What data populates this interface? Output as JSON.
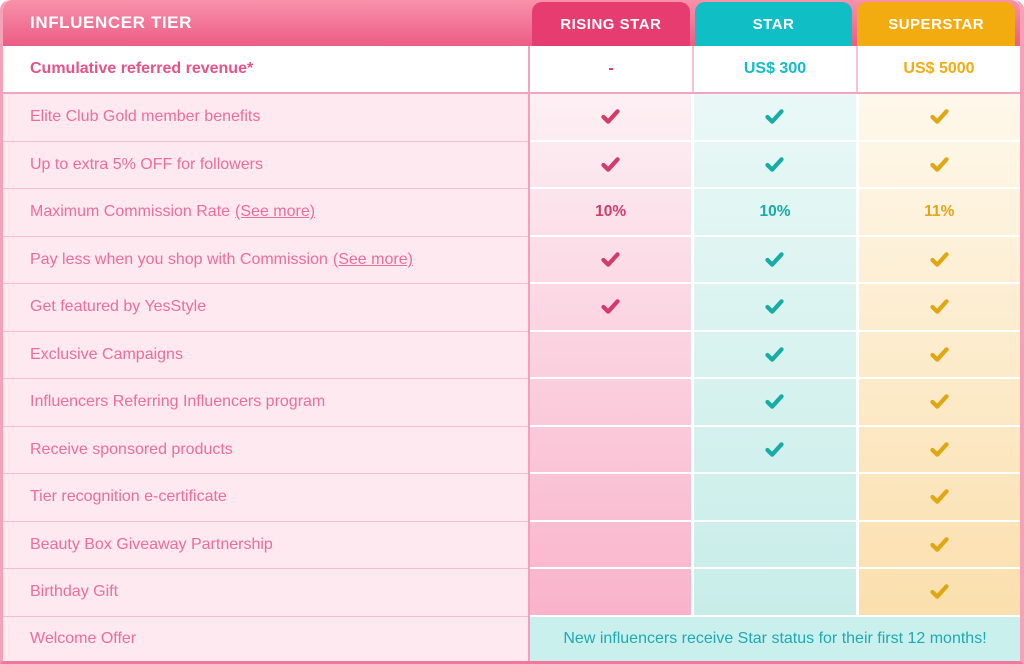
{
  "header": {
    "title": "INFLUENCER TIER"
  },
  "tiers": [
    {
      "name": "RISING STAR",
      "value": "-"
    },
    {
      "name": "STAR",
      "value": "US$ 300"
    },
    {
      "name": "SUPERSTAR",
      "value": "US$ 5000"
    }
  ],
  "revenue_row": {
    "label": "Cumulative referred revenue*"
  },
  "features": [
    {
      "label": "Elite Club Gold member benefits",
      "cells": [
        "check",
        "check",
        "check"
      ]
    },
    {
      "label": "Up to extra 5% OFF for followers",
      "cells": [
        "check",
        "check",
        "check"
      ]
    },
    {
      "label": "Maximum Commission Rate",
      "link": "(See more)",
      "cells": [
        "10%",
        "10%",
        "11%"
      ]
    },
    {
      "label": "Pay less when you shop with Commission",
      "link": "(See more)",
      "cells": [
        "check",
        "check",
        "check"
      ]
    },
    {
      "label": "Get featured by YesStyle",
      "cells": [
        "check",
        "check",
        "check"
      ]
    },
    {
      "label": "Exclusive Campaigns",
      "cells": [
        "",
        "check",
        "check"
      ]
    },
    {
      "label": "Influencers Referring Influencers program",
      "cells": [
        "",
        "check",
        "check"
      ]
    },
    {
      "label": "Receive sponsored products",
      "cells": [
        "",
        "check",
        "check"
      ]
    },
    {
      "label": "Tier recognition e-certificate",
      "cells": [
        "",
        "",
        "check"
      ]
    },
    {
      "label": "Beauty Box Giveaway Partnership",
      "cells": [
        "",
        "",
        "check"
      ]
    },
    {
      "label": "Birthday Gift",
      "cells": [
        "",
        "",
        "check"
      ]
    }
  ],
  "welcome_row": {
    "label": "Welcome Offer",
    "note": "New influencers receive Star status for their first 12 months!"
  },
  "icons": {
    "check": "check-icon"
  },
  "theme": {
    "band_top": "#F892AB",
    "band_bottom": "#EC5C85",
    "rising_header": "#E73C70",
    "star_header": "#10BEC5",
    "superstar_header": "#F3AC10",
    "rising_accent": "#D43A6C",
    "star_accent": "#17ACA4",
    "superstar_accent": "#E0A713",
    "rising_grad_top": "#FDF0F4",
    "rising_grad_bottom": "#F9B3CB",
    "star_grad_top": "#E9F8F6",
    "star_grad_bottom": "#C8EDE9",
    "superstar_grad_top": "#FEF8EB",
    "superstar_grad_bottom": "#FBDFAD",
    "label_col_bg": "#FDE9EF",
    "label_text": "#EE6D99",
    "label_sep": "#F7BCCE",
    "label_col_border": "#F4A0BB",
    "revenue_label_color": "#E75287",
    "revenue_sep": "#F2A3BE",
    "revenue_sep_light": "#F6C3D4",
    "welcome_bg": "#C9F0ED",
    "welcome_text": "#1FA9B1",
    "outer_border": "#F7A0BA",
    "outer_border_bottom": "#F0779E"
  }
}
